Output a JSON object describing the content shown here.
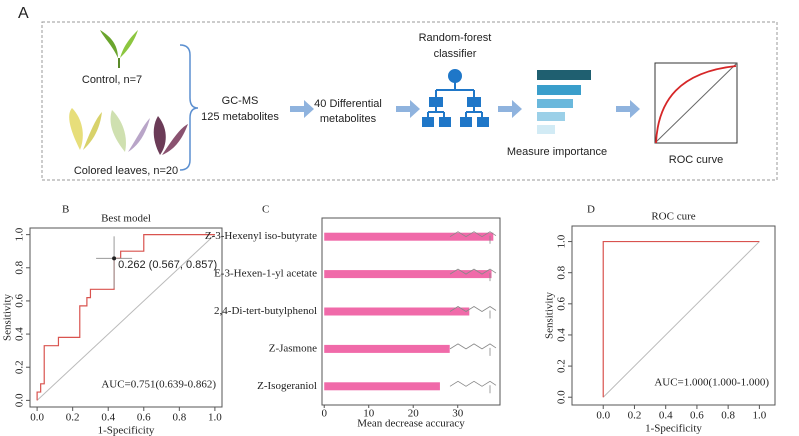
{
  "panel_a": {
    "panel_label": "A",
    "control": "Control, n=7",
    "colored": "Colored leaves, n=20",
    "gcms_1": "GC-MS",
    "gcms_2": "125 metabolites",
    "diff_1": "40 Differential",
    "diff_2": "metabolites",
    "rf_1": "Random-forest",
    "rf_2": "classifier",
    "importance": "Measure importance",
    "roc": "ROC curve"
  },
  "chart_data": [
    {
      "type": "line",
      "panel_label": "B",
      "title": "Best model",
      "xlabel": "1-Specificity",
      "ylabel": "Sensitivity",
      "x": [
        0,
        0,
        0.02,
        0.02,
        0.04,
        0.04,
        0.12,
        0.12,
        0.24,
        0.24,
        0.28,
        0.28,
        0.3,
        0.3,
        0.433,
        0.433,
        0.47,
        0.47,
        0.6,
        0.6,
        1
      ],
      "values": [
        0,
        0.05,
        0.05,
        0.1,
        0.1,
        0.33,
        0.33,
        0.38,
        0.38,
        0.57,
        0.57,
        0.62,
        0.62,
        0.67,
        0.67,
        0.857,
        0.857,
        0.9,
        0.9,
        1,
        1
      ],
      "color": "#d9534f",
      "xlim": [
        -0.04,
        1.04
      ],
      "ylim": [
        -0.04,
        1.04
      ],
      "xticks": [
        {
          "value": 0,
          "label": "0.0"
        },
        {
          "value": 0.2,
          "label": "0.2"
        },
        {
          "value": 0.4,
          "label": "0.4"
        },
        {
          "value": 0.6,
          "label": "0.6"
        },
        {
          "value": 0.8,
          "label": "0.8"
        },
        {
          "value": 1,
          "label": "1.0"
        }
      ],
      "yticks": [
        {
          "value": 0,
          "label": "0.0"
        },
        {
          "value": 0.2,
          "label": "0.2"
        },
        {
          "value": 0.4,
          "label": "0.4"
        },
        {
          "value": 0.6,
          "label": "0.6"
        },
        {
          "value": 0.8,
          "label": "0.8"
        },
        {
          "value": 1,
          "label": "1.0"
        }
      ],
      "point_annotation": "0.262 (0.567, 0.857)",
      "auc": "AUC=0.751(0.639-0.862)"
    },
    {
      "type": "barh",
      "panel_label": "C",
      "xlabel": "Mean decrease accuracy",
      "categories": [
        "Z-3-Hexenyl iso-butyrate",
        "E-3-Hexen-1-yl acetate",
        "2,4-Di-tert-butylphenol",
        "Z-Jasmone",
        "Z-Isogeraniol"
      ],
      "values": [
        38,
        37.6,
        32.6,
        28.2,
        26
      ],
      "color": "#f06aa9",
      "xlim": [
        -0.5,
        39.5
      ],
      "xticks": [
        0,
        10,
        20,
        30
      ]
    },
    {
      "type": "line",
      "panel_label": "D",
      "title": "ROC cure",
      "xlabel": "1-Specificity",
      "ylabel": "Sensitivity",
      "x": [
        0,
        0,
        1
      ],
      "values": [
        0,
        1,
        1
      ],
      "color": "#d9534f",
      "xlim": [
        -0.2,
        1.1
      ],
      "ylim": [
        -0.05,
        1.1
      ],
      "xticks": [
        {
          "value": 0,
          "label": "0.0"
        },
        {
          "value": 0.2,
          "label": "0.2"
        },
        {
          "value": 0.4,
          "label": "0.4"
        },
        {
          "value": 0.6,
          "label": "0.6"
        },
        {
          "value": 0.8,
          "label": "0.8"
        },
        {
          "value": 1,
          "label": "1.0"
        }
      ],
      "yticks": [
        {
          "value": 0,
          "label": "0.0"
        },
        {
          "value": 0.2,
          "label": "0.2"
        },
        {
          "value": 0.4,
          "label": "0.4"
        },
        {
          "value": 0.6,
          "label": "0.6"
        },
        {
          "value": 0.8,
          "label": "0.8"
        },
        {
          "value": 1,
          "label": "1.0"
        }
      ],
      "auc": "AUC=1.000(1.000-1.000)"
    }
  ]
}
